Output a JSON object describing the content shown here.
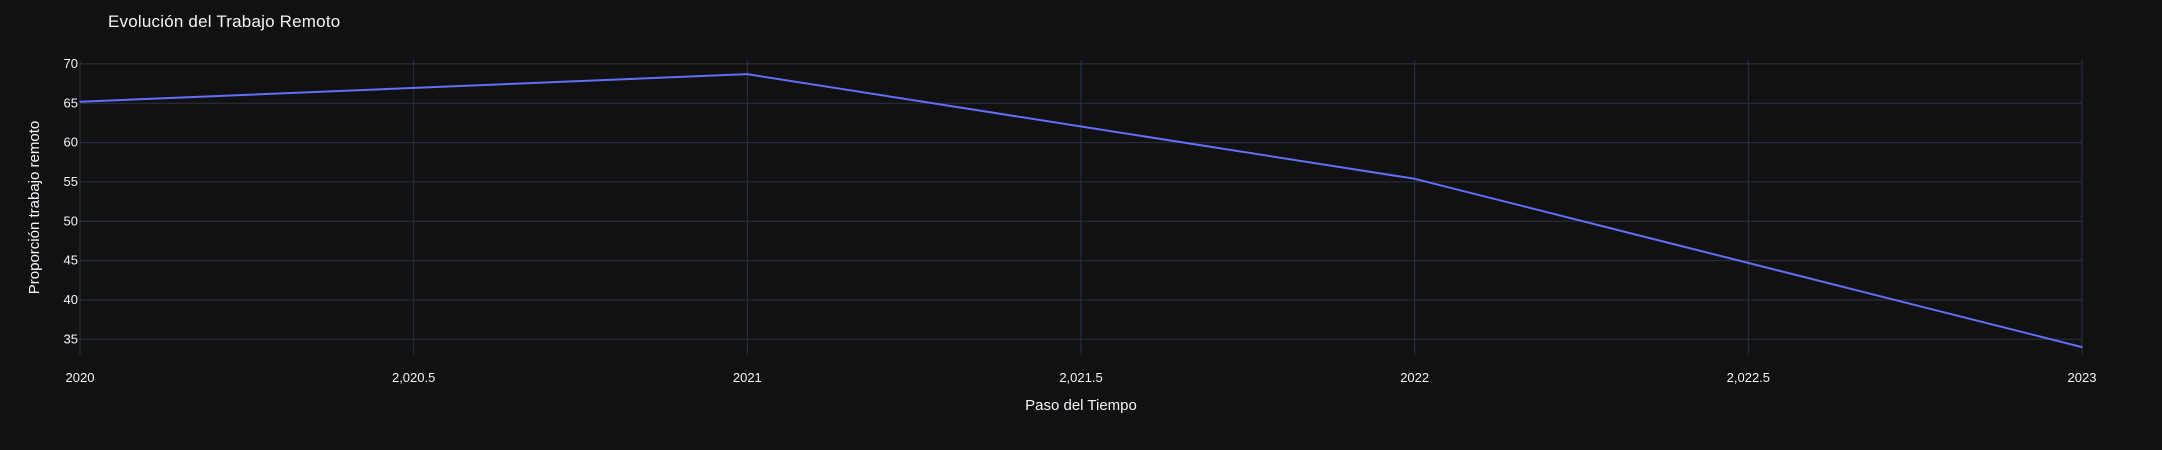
{
  "chart_data": {
    "type": "line",
    "title": "Evolución del Trabajo Remoto",
    "xlabel": "Paso del Tiempo",
    "ylabel": "Proporción trabajo remoto",
    "x": [
      2020,
      2021,
      2022,
      2023
    ],
    "series": [
      {
        "values": [
          65.2,
          68.7,
          55.4,
          34.0
        ]
      }
    ],
    "xlim": [
      2020,
      2023
    ],
    "ylim": [
      33,
      70.5
    ],
    "x_ticks": [
      {
        "value": 2020,
        "label": "2020"
      },
      {
        "value": 2020.5,
        "label": "2,020.5"
      },
      {
        "value": 2021,
        "label": "2021"
      },
      {
        "value": 2021.5,
        "label": "2,021.5"
      },
      {
        "value": 2022,
        "label": "2022"
      },
      {
        "value": 2022.5,
        "label": "2,022.5"
      },
      {
        "value": 2023,
        "label": "2023"
      }
    ],
    "y_ticks": [
      {
        "value": 35,
        "label": "35"
      },
      {
        "value": 40,
        "label": "40"
      },
      {
        "value": 45,
        "label": "45"
      },
      {
        "value": 50,
        "label": "50"
      },
      {
        "value": 55,
        "label": "55"
      },
      {
        "value": 60,
        "label": "60"
      },
      {
        "value": 65,
        "label": "65"
      },
      {
        "value": 70,
        "label": "70"
      }
    ],
    "grid": true,
    "legend": "none",
    "colors": {
      "background": "#111111",
      "grid": "#283442",
      "line": "#636efa",
      "text": "#f2f5fa"
    }
  }
}
